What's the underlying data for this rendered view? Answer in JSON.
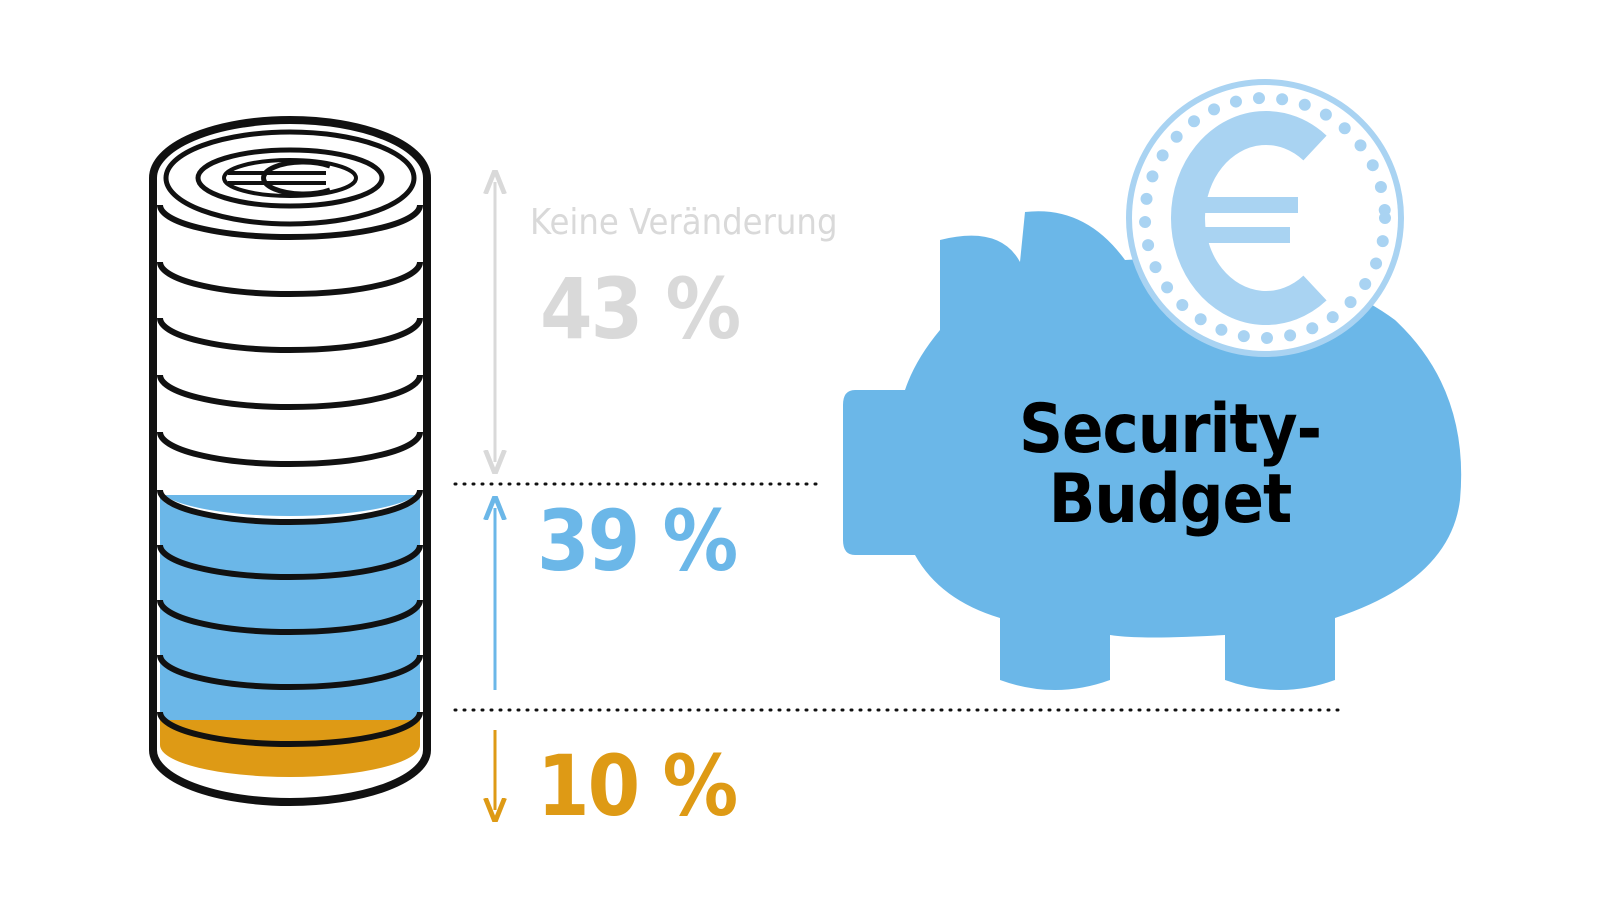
{
  "stack": {
    "segments": [
      {
        "caption": "Keine Veränderung",
        "value": "43 %"
      },
      {
        "value": "39 %"
      },
      {
        "value": "10 %"
      }
    ]
  },
  "piggy_bank": {
    "label_lines": [
      "Security-",
      "Budget"
    ]
  }
}
